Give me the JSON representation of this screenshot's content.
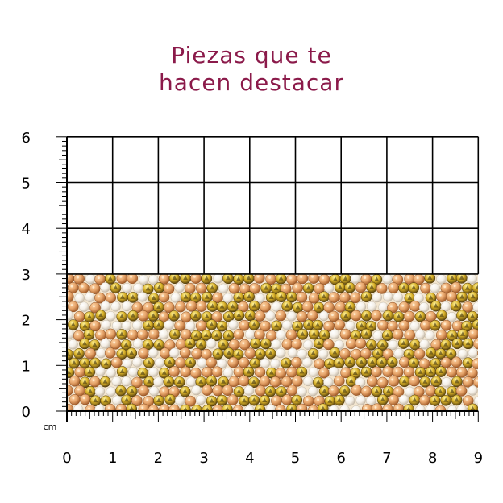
{
  "title": {
    "line1": "Piezas que te",
    "line2": "hacen destacar"
  },
  "ruler": {
    "unit": "cm",
    "x_labels": [
      "0",
      "1",
      "2",
      "3",
      "4",
      "5",
      "6",
      "7",
      "8",
      "9"
    ],
    "y_labels": [
      "0",
      "1",
      "2",
      "3",
      "4",
      "5",
      "6"
    ]
  },
  "product": {
    "width_cm": 9,
    "height_cm": 3,
    "colors": {
      "base": "#f3e6d0",
      "peach_crystal": "#e6a46a",
      "gold_crystal": "#d8b027",
      "pearl": "#f4efe6"
    }
  },
  "colors": {
    "title": "#8b1a4a",
    "grid": "#000000"
  }
}
